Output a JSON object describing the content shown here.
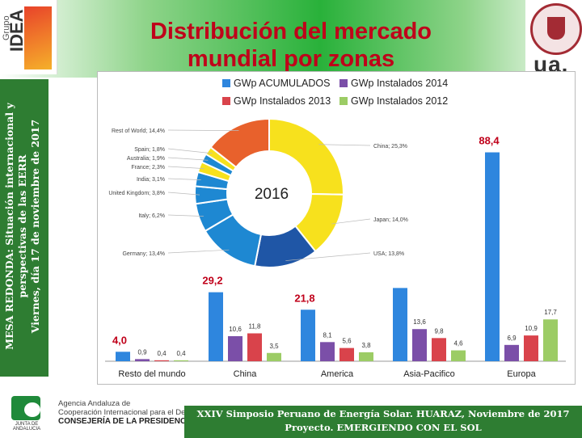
{
  "slide": {
    "title_line1": "Distribución del mercado",
    "title_line2": "mundial por zonas",
    "side_line1": "MESA REDONDA: Situación internacional y",
    "side_line2": "perspectivas de las EERR",
    "side_line3": "Viernes, día 17 de noviembre de 2017",
    "logo_left_small": "Grupo",
    "logo_left_big": "IDEA",
    "logo_right_text": "ua.",
    "agency_line1": "Agencia Andaluza de",
    "agency_line2": "Cooperación Internacional para el Desarrollo",
    "agency_line3": "CONSEJERÍA DE LA PRESIDENCIA",
    "junta_text": "JUNTA DE ANDALUCIA",
    "footer_line1": "XXIV Simposio Peruano de Energía Solar. HUARAZ, Noviembre de 2017",
    "footer_line2": "Proyecto. EMERGIENDO CON EL SOL"
  },
  "colors": {
    "acumulados": "#2e86de",
    "inst2014": "#7b4fa8",
    "inst2013": "#d9434b",
    "inst2012": "#9ccc65",
    "highlight_label": "#c0001a"
  },
  "chart_data": [
    {
      "type": "bar",
      "categories": [
        "Resto del mundo",
        "China",
        "America",
        "Asia-Pacifico",
        "Europa"
      ],
      "series": [
        {
          "name": "GWp ACUMULADOS",
          "values": [
            4.0,
            29.2,
            21.8,
            31.0,
            88.4
          ],
          "labels": [
            "4,0",
            "29,2",
            "21,8",
            "",
            "88,4"
          ]
        },
        {
          "name": "GWp Instalados 2014",
          "values": [
            0.9,
            10.6,
            8.1,
            13.6,
            6.9
          ],
          "labels": [
            "0,9",
            "10,6",
            "8,1",
            "13,6",
            "6,9"
          ]
        },
        {
          "name": "GWp Instalados 2013",
          "values": [
            0.4,
            11.8,
            5.6,
            9.8,
            10.9
          ],
          "labels": [
            "0,4",
            "11,8",
            "5,6",
            "9,8",
            "10,9"
          ]
        },
        {
          "name": "GWp Instalados 2012",
          "values": [
            0.4,
            3.5,
            3.8,
            4.6,
            17.7
          ],
          "labels": [
            "0,4",
            "3,5",
            "3,8",
            "4,6",
            "17,7"
          ]
        }
      ],
      "ylim": [
        0,
        92
      ],
      "legend_position": "top",
      "grid": false
    },
    {
      "type": "pie",
      "title": "2016",
      "slices": [
        {
          "label": "China; 25,3%",
          "value": 25.3,
          "color": "#f7e11d"
        },
        {
          "label": "Japan; 14,0%",
          "value": 14.0,
          "color": "#f7e11d"
        },
        {
          "label": "USA; 13,8%",
          "value": 13.8,
          "color": "#1f56a6"
        },
        {
          "label": "Germany; 13,4%",
          "value": 13.4,
          "color": "#1e88d2"
        },
        {
          "label": "Italy; 6,2%",
          "value": 6.2,
          "color": "#1e88d2"
        },
        {
          "label": "United Kingdom; 3,8%",
          "value": 3.8,
          "color": "#1e88d2"
        },
        {
          "label": "India; 3,1%",
          "value": 3.1,
          "color": "#1e88d2"
        },
        {
          "label": "France; 2,3%",
          "value": 2.3,
          "color": "#f7e11d"
        },
        {
          "label": "Australia; 1,9%",
          "value": 1.9,
          "color": "#1e88d2"
        },
        {
          "label": "Spain; 1,8%",
          "value": 1.8,
          "color": "#f7e11d"
        },
        {
          "label": "Rest of World; 14,4%",
          "value": 14.4,
          "color": "#e8612c"
        }
      ]
    }
  ]
}
